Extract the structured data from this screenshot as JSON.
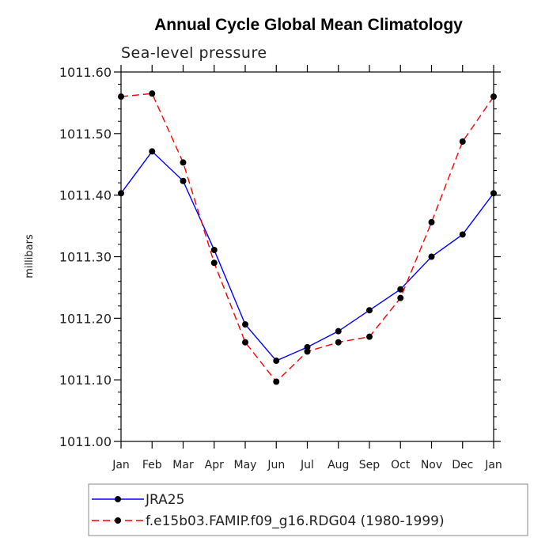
{
  "chart_data": {
    "type": "line",
    "title": "Annual Cycle Global Mean Climatology",
    "subtitle": "Sea-level pressure",
    "xlabel": "",
    "ylabel": "millibars",
    "categories": [
      "Jan",
      "Feb",
      "Mar",
      "Apr",
      "May",
      "Jun",
      "Jul",
      "Aug",
      "Sep",
      "Oct",
      "Nov",
      "Dec",
      "Jan"
    ],
    "yticks": [
      "1011.60",
      "1011.50",
      "1011.40",
      "1011.30",
      "1011.20",
      "1011.10",
      "1011.00"
    ],
    "ylim": [
      1011.0,
      1011.6
    ],
    "grid": false,
    "legend_position": "bottom",
    "series": [
      {
        "name": "JRA25",
        "color": "#0000ff",
        "dash": "solid",
        "values": [
          1011.403,
          1011.471,
          1011.423,
          1011.311,
          1011.19,
          1011.131,
          1011.153,
          1011.179,
          1011.213,
          1011.247,
          1011.3,
          1011.336,
          1011.403
        ]
      },
      {
        "name": "f.e15b03.FAMIP.f09_g16.RDG04 (1980-1999)",
        "color": "#ff0000",
        "dash": "dashed",
        "values": [
          1011.56,
          1011.565,
          1011.453,
          1011.29,
          1011.161,
          1011.097,
          1011.146,
          1011.161,
          1011.17,
          1011.233,
          1011.356,
          1011.487,
          1011.56
        ]
      }
    ]
  }
}
